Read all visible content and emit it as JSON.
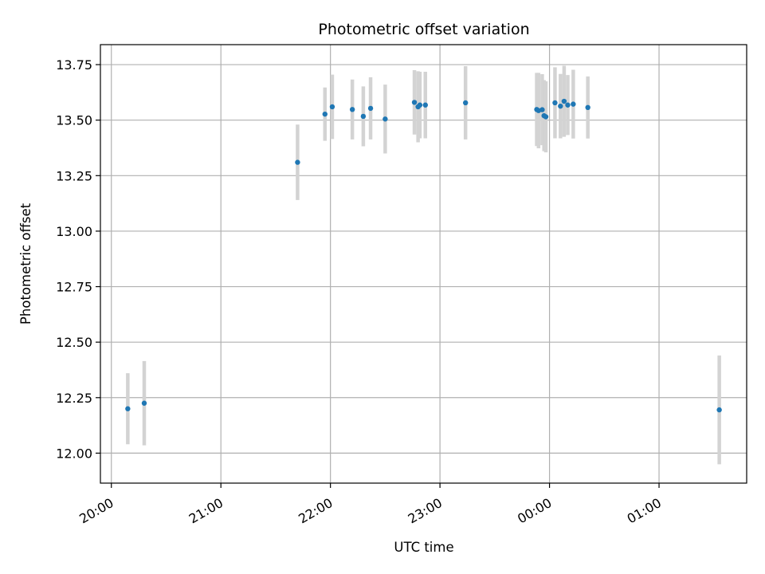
{
  "chart_data": {
    "type": "scatter",
    "title": "Photometric offset variation",
    "xlabel": "UTC time",
    "ylabel": "Photometric offset",
    "grid": true,
    "x_unit": "UTC (HH:MM)",
    "xlim": [
      "19:54",
      "01:48"
    ],
    "ylim": [
      11.865,
      13.84
    ],
    "x_ticks": [
      "20:00",
      "21:00",
      "22:00",
      "23:00",
      "00:00",
      "01:00"
    ],
    "y_ticks": [
      "12.00",
      "12.25",
      "12.50",
      "12.75",
      "13.00",
      "13.25",
      "13.50",
      "13.75"
    ],
    "colors": {
      "points": "#1f77b4",
      "errorbars": "#d3d3d3",
      "grid": "#b0b0b0"
    },
    "points": [
      {
        "x": "20:09",
        "y": 12.2,
        "err": 0.16
      },
      {
        "x": "20:18",
        "y": 12.225,
        "err": 0.19
      },
      {
        "x": "21:42",
        "y": 13.31,
        "err": 0.17
      },
      {
        "x": "21:57",
        "y": 13.527,
        "err": 0.12
      },
      {
        "x": "22:01",
        "y": 13.56,
        "err": 0.145
      },
      {
        "x": "22:12",
        "y": 13.548,
        "err": 0.135
      },
      {
        "x": "22:18",
        "y": 13.517,
        "err": 0.135
      },
      {
        "x": "22:22",
        "y": 13.553,
        "err": 0.14
      },
      {
        "x": "22:30",
        "y": 13.505,
        "err": 0.155
      },
      {
        "x": "22:46",
        "y": 13.58,
        "err": 0.145
      },
      {
        "x": "22:48",
        "y": 13.56,
        "err": 0.16
      },
      {
        "x": "22:49",
        "y": 13.568,
        "err": 0.15
      },
      {
        "x": "22:52",
        "y": 13.568,
        "err": 0.15
      },
      {
        "x": "23:14",
        "y": 13.578,
        "err": 0.165
      },
      {
        "x": "23:53",
        "y": 13.548,
        "err": 0.165
      },
      {
        "x": "23:54",
        "y": 13.543,
        "err": 0.17
      },
      {
        "x": "23:56",
        "y": 13.547,
        "err": 0.16
      },
      {
        "x": "23:57",
        "y": 13.52,
        "err": 0.16
      },
      {
        "x": "23:58",
        "y": 13.515,
        "err": 0.16
      },
      {
        "x": "00:03",
        "y": 13.578,
        "err": 0.16
      },
      {
        "x": "00:06",
        "y": 13.563,
        "err": 0.145
      },
      {
        "x": "00:08",
        "y": 13.585,
        "err": 0.16
      },
      {
        "x": "00:10",
        "y": 13.568,
        "err": 0.135
      },
      {
        "x": "00:13",
        "y": 13.572,
        "err": 0.155
      },
      {
        "x": "00:21",
        "y": 13.557,
        "err": 0.14
      },
      {
        "x": "01:33",
        "y": 12.195,
        "err": 0.245
      }
    ]
  }
}
